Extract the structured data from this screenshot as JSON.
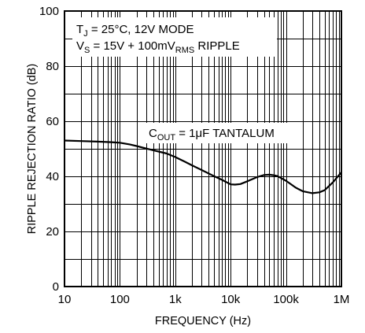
{
  "chart_data": {
    "type": "line",
    "xscale": "log",
    "xlim": [
      10,
      1000000
    ],
    "ylim": [
      0,
      100
    ],
    "xlabel": "FREQUENCY (Hz)",
    "ylabel": "RIPPLE REJECTION RATIO (dB)",
    "x_ticks": [
      10,
      100,
      1000,
      10000,
      100000,
      1000000
    ],
    "x_tick_labels": [
      "10",
      "100",
      "1k",
      "10k",
      "100k",
      "1M"
    ],
    "y_ticks": [
      0,
      20,
      40,
      60,
      80,
      100
    ],
    "y_tick_labels": [
      "0",
      "20",
      "40",
      "60",
      "80",
      "100"
    ],
    "grid": true,
    "annotations": {
      "conditions_line1": {
        "main": "T",
        "sub": "J",
        "rest": " = 25°C, 12V MODE"
      },
      "conditions_line2": {
        "main": "V",
        "sub": "S",
        "mid": " = 15V + 100mV",
        "sub2": "RMS",
        "rest": " RIPPLE"
      },
      "curve_label": {
        "main": "C",
        "sub": "OUT",
        "rest": " = 1μF TANTALUM"
      }
    },
    "series": [
      {
        "x": [
          10,
          20,
          40,
          70,
          100,
          150,
          200,
          300,
          500,
          700,
          1000,
          1500,
          2000,
          3000,
          5000,
          7000,
          10000,
          12000,
          15000,
          20000,
          30000,
          40000,
          50000,
          60000,
          70000,
          100000,
          150000,
          200000,
          300000,
          400000,
          500000,
          700000,
          1000000
        ],
        "y": [
          53,
          52.8,
          52.6,
          52.4,
          52.2,
          51.6,
          51,
          50.1,
          49,
          48.3,
          47,
          45.3,
          44,
          42.3,
          40.1,
          38.7,
          37.1,
          37,
          37.2,
          38.2,
          39.7,
          40.5,
          40.6,
          40.4,
          40.1,
          38.4,
          35.9,
          34.6,
          33.9,
          34.2,
          35,
          37.8,
          41.5
        ]
      }
    ]
  }
}
